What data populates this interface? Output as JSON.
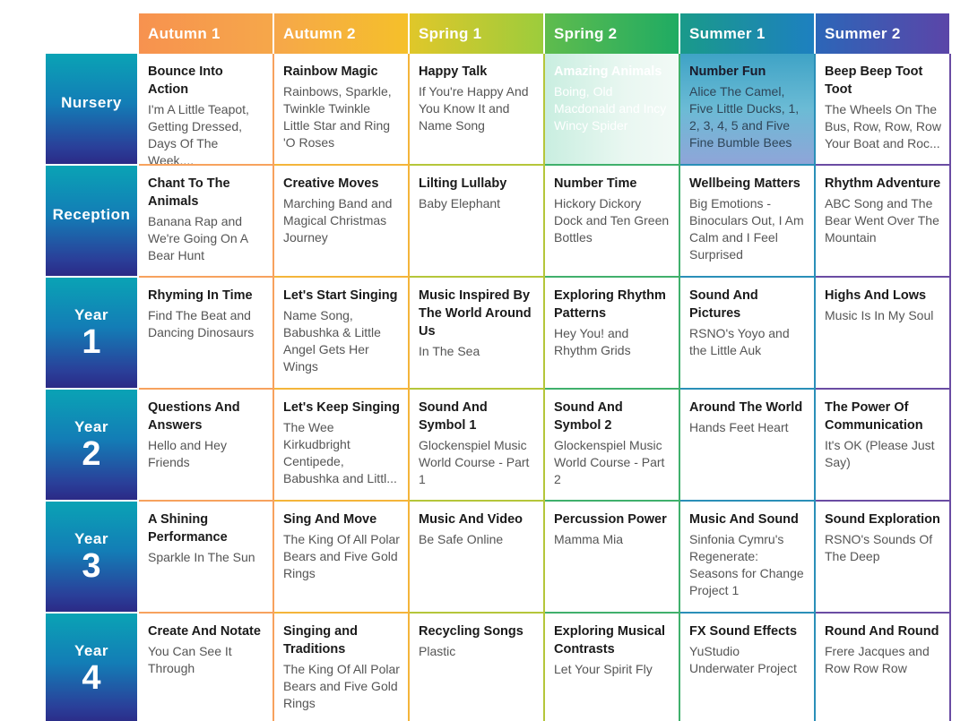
{
  "terms": [
    "Autumn 1",
    "Autumn 2",
    "Spring 1",
    "Spring 2",
    "Summer 1",
    "Summer 2"
  ],
  "header_colors": [
    "#f7924f",
    "#f5c02a",
    "#9ccc3c",
    "#1fab63",
    "#1d80c0",
    "#5b45a8"
  ],
  "rows": [
    {
      "word": "Nursery",
      "num": "",
      "cells": [
        {
          "title": "Bounce Into Action",
          "sub": "I'm A Little Teapot, Getting Dressed, Days Of The Week,..."
        },
        {
          "title": "Rainbow Magic",
          "sub": "Rainbows, Sparkle, Twinkle Twinkle Little Star and Ring 'O Roses"
        },
        {
          "title": "Happy Talk",
          "sub": "If You're Happy And You Know It and Name Song"
        },
        {
          "title": "Amazing Animals",
          "sub": "Boing, Old Macdonald and Incy Wincy Spider"
        },
        {
          "title": "Number Fun",
          "sub": "Alice The Camel, Five Little Ducks, 1, 2, 3, 4, 5 and Five Fine Bumble Bees"
        },
        {
          "title": "Beep Beep Toot Toot",
          "sub": "The Wheels On The Bus, Row, Row, Row Your Boat and Roc..."
        }
      ]
    },
    {
      "word": "Reception",
      "num": "",
      "cells": [
        {
          "title": "Chant To The Animals",
          "sub": "Banana Rap and We're Going On A Bear Hunt"
        },
        {
          "title": "Creative Moves",
          "sub": "Marching Band and Magical Christmas Journey"
        },
        {
          "title": "Lilting Lullaby",
          "sub": "Baby Elephant"
        },
        {
          "title": "Number Time",
          "sub": "Hickory Dickory Dock and Ten Green Bottles"
        },
        {
          "title": "Wellbeing Matters",
          "sub": "Big Emotions - Binoculars Out, I Am Calm and I Feel Surprised"
        },
        {
          "title": "Rhythm Adventure",
          "sub": "ABC Song and The Bear Went Over The Mountain"
        }
      ]
    },
    {
      "word": "Year",
      "num": "1",
      "cells": [
        {
          "title": "Rhyming In Time",
          "sub": "Find The Beat and Dancing Dinosaurs"
        },
        {
          "title": "Let's Start Singing",
          "sub": "Name Song, Babushka & Little Angel Gets Her Wings"
        },
        {
          "title": "Music Inspired By The World Around Us",
          "sub": "In The Sea"
        },
        {
          "title": "Exploring Rhythm Patterns",
          "sub": "Hey You! and Rhythm Grids"
        },
        {
          "title": "Sound And Pictures",
          "sub": "RSNO's Yoyo and the Little Auk"
        },
        {
          "title": "Highs And Lows",
          "sub": "Music Is In My Soul"
        }
      ]
    },
    {
      "word": "Year",
      "num": "2",
      "cells": [
        {
          "title": "Questions And Answers",
          "sub": "Hello and Hey Friends"
        },
        {
          "title": "Let's Keep Singing",
          "sub": "The Wee Kirkudbright Centipede, Babushka and Littl..."
        },
        {
          "title": "Sound And Symbol 1",
          "sub": "Glockenspiel Music World Course - Part 1"
        },
        {
          "title": "Sound And Symbol 2",
          "sub": "Glockenspiel Music World Course - Part 2"
        },
        {
          "title": "Around The World",
          "sub": "Hands Feet Heart"
        },
        {
          "title": "The Power Of Communication",
          "sub": "It's OK (Please Just Say)"
        }
      ]
    },
    {
      "word": "Year",
      "num": "3",
      "cells": [
        {
          "title": "A Shining Performance",
          "sub": "Sparkle In The Sun"
        },
        {
          "title": "Sing And Move",
          "sub": "The King Of All Polar Bears and Five Gold Rings"
        },
        {
          "title": "Music And Video",
          "sub": "Be Safe Online"
        },
        {
          "title": "Percussion Power",
          "sub": "Mamma Mia"
        },
        {
          "title": "Music And Sound",
          "sub": "Sinfonia Cymru's Regenerate: Seasons for Change Project 1"
        },
        {
          "title": "Sound Exploration",
          "sub": "RSNO's Sounds Of The Deep"
        }
      ]
    },
    {
      "word": "Year",
      "num": "4",
      "cells": [
        {
          "title": "Create And Notate",
          "sub": "You Can See It Through"
        },
        {
          "title": "Singing and Traditions",
          "sub": "The King Of All Polar Bears and Five Gold Rings"
        },
        {
          "title": "Recycling Songs",
          "sub": "Plastic"
        },
        {
          "title": "Exploring Musical Contrasts",
          "sub": "Let Your Spirit Fly"
        },
        {
          "title": "FX Sound Effects",
          "sub": "YuStudio Underwater Project"
        },
        {
          "title": "Round And Round",
          "sub": "Frere Jacques and Row Row Row"
        }
      ]
    }
  ]
}
